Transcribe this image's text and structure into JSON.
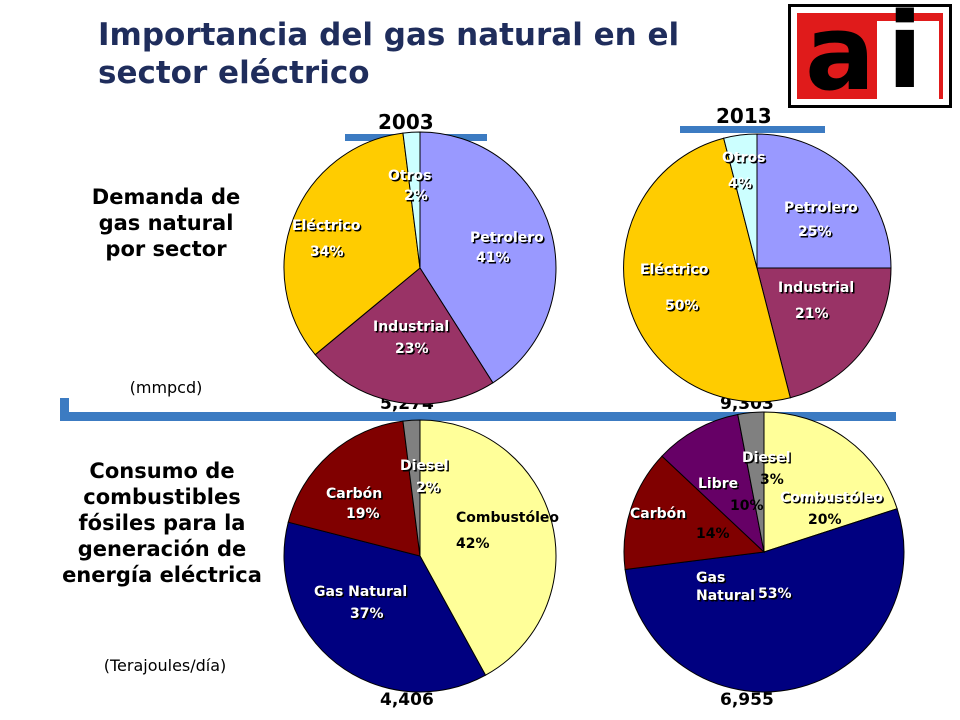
{
  "title": "Importancia del gas natural en el sector eléctrico",
  "years": {
    "left": "2003",
    "right": "2013"
  },
  "sections": {
    "demand_label": "Demanda de gas natural por sector",
    "demand_unit": "(mmpcd)",
    "consumption_label": "Consumo de combustibles fósiles para la generación de energía eléctrica",
    "consumption_unit": "(Terajoules/día)"
  },
  "colors": {
    "accent_bar": "#3c7bc2",
    "title": "#1f2d5c",
    "logo_red": "#e01b1b"
  },
  "chart_data": [
    {
      "type": "pie",
      "title": "2003",
      "total": "5,274",
      "slices": [
        {
          "name": "Petrolero",
          "value": 41,
          "label": "41%",
          "color": "#9999ff"
        },
        {
          "name": "Industrial",
          "value": 23,
          "label": "23%",
          "color": "#993366"
        },
        {
          "name": "Eléctrico",
          "value": 34,
          "label": "34%",
          "color": "#ffcc00"
        },
        {
          "name": "Otros",
          "value": 2,
          "label": "2%",
          "color": "#ccffff"
        }
      ]
    },
    {
      "type": "pie",
      "title": "2013",
      "total": "9,303",
      "slices": [
        {
          "name": "Petrolero",
          "value": 25,
          "label": "25%",
          "color": "#9999ff"
        },
        {
          "name": "Industrial",
          "value": 21,
          "label": "21%",
          "color": "#993366"
        },
        {
          "name": "Eléctrico",
          "value": 50,
          "label": "50%",
          "color": "#ffcc00"
        },
        {
          "name": "Otros",
          "value": 4,
          "label": "4%",
          "color": "#ccffff"
        }
      ]
    },
    {
      "type": "pie",
      "title": "2003",
      "total": "4,406",
      "slices": [
        {
          "name": "Combustóleo",
          "value": 42,
          "label": "42%",
          "color": "#ffff99"
        },
        {
          "name": "Gas Natural",
          "value": 37,
          "label": "37%",
          "color": "#000080"
        },
        {
          "name": "Carbón",
          "value": 19,
          "label": "19%",
          "color": "#800000"
        },
        {
          "name": "Diesel",
          "value": 2,
          "label": "2%",
          "color": "#808080"
        }
      ]
    },
    {
      "type": "pie",
      "title": "2013",
      "total": "6,955",
      "slices": [
        {
          "name": "Combustóleo",
          "value": 20,
          "label": "20%",
          "color": "#ffff99"
        },
        {
          "name": "Gas Natural",
          "value": 53,
          "label": "53%",
          "color": "#000080"
        },
        {
          "name": "Carbón",
          "value": 14,
          "label": "14%",
          "color": "#800000"
        },
        {
          "name": "Libre",
          "value": 10,
          "label": "10%",
          "color": "#660066"
        },
        {
          "name": "Diesel",
          "value": 3,
          "label": "3%",
          "color": "#808080"
        }
      ]
    }
  ]
}
